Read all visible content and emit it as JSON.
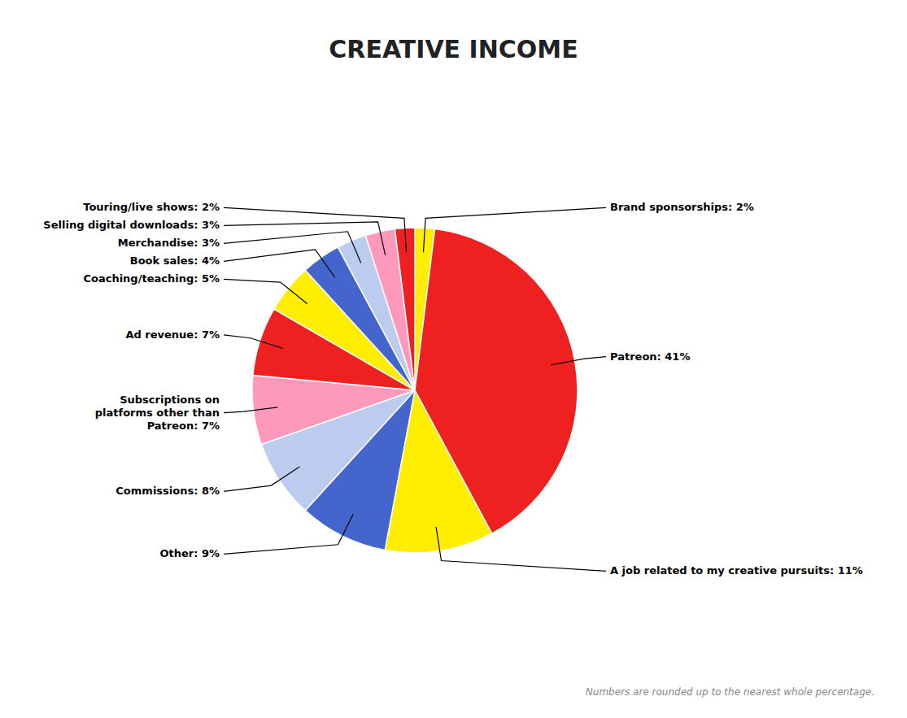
{
  "chart_data": {
    "type": "pie",
    "title": "CREATIVE INCOME",
    "footnote": "Numbers are rounded up to the nearest whole percentage.",
    "categories": [
      "Brand sponsorships: 2%",
      "Patreon: 41%",
      "A job related to my creative pursuits: 11%",
      "Other: 9%",
      "Commissions: 8%",
      "Subscriptions on\nplatforms other than\nPatreon: 7%",
      "Ad revenue: 7%",
      "Coaching/teaching: 5%",
      "Book sales: 4%",
      "Merchandise: 3%",
      "Selling digital downloads: 3%",
      "Touring/live shows: 2%"
    ],
    "values": [
      2,
      41,
      11,
      9,
      8,
      7,
      7,
      5,
      4,
      3,
      3,
      2
    ],
    "colors": [
      "#FFEE00",
      "#EE2020",
      "#FFEE00",
      "#4466CC",
      "#BBCCEE",
      "#FF99BB",
      "#EE2020",
      "#FFEE00",
      "#4466CC",
      "#BBCCEE",
      "#FF99BB",
      "#EE2020"
    ]
  }
}
